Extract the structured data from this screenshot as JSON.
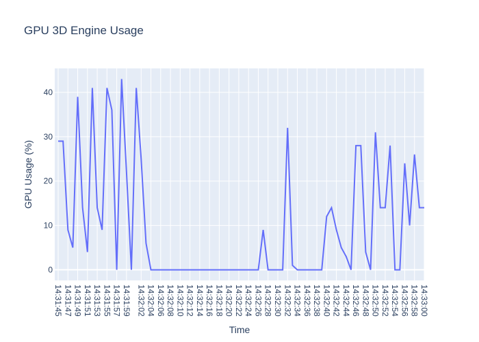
{
  "chart_data": {
    "type": "line",
    "title": "GPU 3D Engine Usage",
    "xlabel": "Time",
    "ylabel": "GPU Usage (%)",
    "line_color": "#636efa",
    "plot_bg": "#e5ecf6",
    "x": [
      "14:31:45",
      "14:31:46",
      "14:31:47",
      "14:31:48",
      "14:31:49",
      "14:31:50",
      "14:31:51",
      "14:31:52",
      "14:31:53",
      "14:31:54",
      "14:31:55",
      "14:31:56",
      "14:31:57",
      "14:31:58",
      "14:31:59",
      "14:32:00",
      "14:32:01",
      "14:32:02",
      "14:32:03",
      "14:32:04",
      "14:32:05",
      "14:32:06",
      "14:32:07",
      "14:32:08",
      "14:32:09",
      "14:32:10",
      "14:32:11",
      "14:32:12",
      "14:32:13",
      "14:32:14",
      "14:32:15",
      "14:32:16",
      "14:32:17",
      "14:32:18",
      "14:32:19",
      "14:32:20",
      "14:32:21",
      "14:32:22",
      "14:32:23",
      "14:32:24",
      "14:32:25",
      "14:32:26",
      "14:32:27",
      "14:32:28",
      "14:32:29",
      "14:32:30",
      "14:32:31",
      "14:32:32",
      "14:32:33",
      "14:32:34",
      "14:32:35",
      "14:32:36",
      "14:32:37",
      "14:32:38",
      "14:32:39",
      "14:32:40",
      "14:32:41",
      "14:32:42",
      "14:32:43",
      "14:32:44",
      "14:32:45",
      "14:32:46",
      "14:32:47",
      "14:32:48",
      "14:32:49",
      "14:32:50",
      "14:32:51",
      "14:32:52",
      "14:32:53",
      "14:32:54",
      "14:32:55",
      "14:32:56",
      "14:32:57",
      "14:32:58",
      "14:32:59",
      "14:33:00"
    ],
    "values": [
      29,
      29,
      9,
      5,
      39,
      14,
      4,
      41,
      14,
      9,
      41,
      36,
      0,
      43,
      22,
      0,
      41,
      25,
      6,
      0,
      0,
      0,
      0,
      0,
      0,
      0,
      0,
      0,
      0,
      0,
      0,
      0,
      0,
      0,
      0,
      0,
      0,
      0,
      0,
      0,
      0,
      0,
      9,
      0,
      0,
      0,
      0,
      32,
      1,
      0,
      0,
      0,
      0,
      0,
      0,
      12,
      14,
      9,
      5,
      3,
      0,
      28,
      28,
      4,
      0,
      31,
      14,
      14,
      28,
      0,
      0,
      24,
      10,
      26,
      14,
      14
    ],
    "xticks": [
      "14:31:45",
      "14:31:47",
      "14:31:49",
      "14:31:51",
      "14:31:53",
      "14:31:55",
      "14:31:57",
      "14:31:59",
      "14:32:02",
      "14:32:04",
      "14:32:06",
      "14:32:08",
      "14:32:10",
      "14:32:12",
      "14:32:14",
      "14:32:16",
      "14:32:18",
      "14:32:20",
      "14:32:22",
      "14:32:24",
      "14:32:26",
      "14:32:28",
      "14:32:30",
      "14:32:32",
      "14:32:34",
      "14:32:36",
      "14:32:38",
      "14:32:40",
      "14:32:42",
      "14:32:44",
      "14:32:46",
      "14:32:48",
      "14:32:50",
      "14:32:52",
      "14:32:54",
      "14:32:56",
      "14:32:58",
      "14:33:00"
    ],
    "yticks": [
      0,
      10,
      20,
      30,
      40
    ],
    "ylim": [
      -2.4,
      45.4
    ],
    "grid": true
  }
}
